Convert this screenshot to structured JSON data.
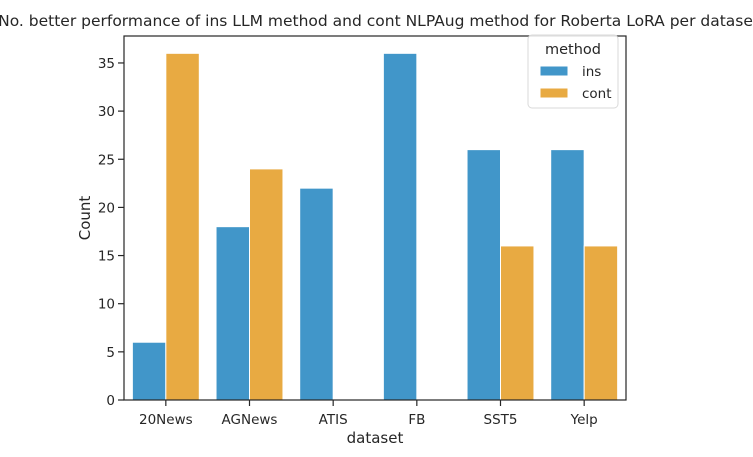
{
  "chart_data": {
    "type": "bar",
    "title": "No. better performance of ins LLM method and cont NLPAug method for Roberta LoRA per dataset.",
    "xlabel": "dataset",
    "ylabel": "Count",
    "categories": [
      "20News",
      "AGNews",
      "ATIS",
      "FB",
      "SST5",
      "Yelp"
    ],
    "series": [
      {
        "name": "ins",
        "color": "#4196c9",
        "values": [
          6,
          18,
          22,
          36,
          26,
          26
        ]
      },
      {
        "name": "cont",
        "color": "#e8aa42",
        "values": [
          36,
          24,
          0,
          0,
          16,
          16
        ]
      }
    ],
    "ylim": [
      0,
      37.8
    ],
    "yticks": [
      0,
      5,
      10,
      15,
      20,
      25,
      30,
      35
    ],
    "legend": {
      "title": "method",
      "position": "top-right"
    },
    "grid": false
  }
}
